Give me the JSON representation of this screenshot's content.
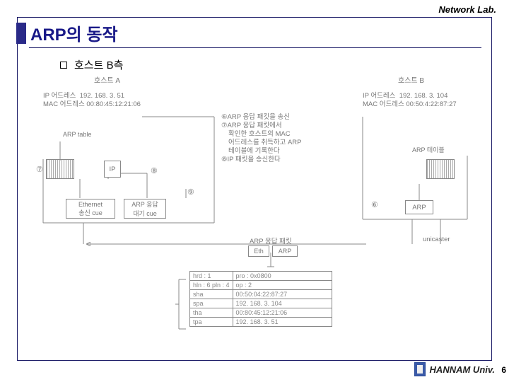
{
  "header": {
    "lab": "Network Lab."
  },
  "title": "ARP의 동작",
  "bullet": "호스트 B측",
  "footer": {
    "univ": "HANNAM Univ.",
    "page": "6"
  },
  "hostA": {
    "label": "호스트 A",
    "ip_lbl": "IP 어드레스",
    "ip": "192. 168. 3. 51",
    "mac_lbl": "MAC 어드레스",
    "mac": "00:80:45:12:21:06",
    "ip_box": "IP",
    "eth_box": "Ethernet\n송신 cue",
    "arp_box": "ARP 응답\n대기 cue",
    "arp_table_lbl": "ARP table"
  },
  "hostB": {
    "label": "호스트 B",
    "ip_lbl": "IP 어드레스",
    "ip": "192. 168. 3. 104",
    "mac_lbl": "MAC 어드레스",
    "mac": "00:50:4:22:87:27",
    "arp_box": "ARP",
    "arp_table_lbl": "ARP 테이블"
  },
  "steps": {
    "s6": "⑥ARP 응답 패킷을 송신",
    "s7a": "⑦ARP 응답 패킷에서",
    "s7b": "확인한 호스트의 MAC",
    "s7c": "어드레스를 취득하고 ARP",
    "s7d": "테이블에 기록한다",
    "s8": "⑧IP 패킷을 송신한다"
  },
  "markers": {
    "m7": "⑦",
    "m8": "⑧",
    "m9": "⑨"
  },
  "reply": {
    "label": "ARP 응답 패킷",
    "eth": "Eth",
    "arp": "ARP"
  },
  "unicast": "unicaster",
  "packet": {
    "rows": [
      [
        "hrd : 1",
        "pro : 0x0800"
      ],
      [
        "hln : 6  pln : 4",
        "op :   2"
      ],
      [
        "sha",
        "00:50:04:22:87:27"
      ],
      [
        "spa",
        "192. 168. 3. 104"
      ],
      [
        "tha",
        "00:80:45:12:21:06"
      ],
      [
        "tpa",
        "192. 168. 3. 51"
      ]
    ]
  },
  "colors": {
    "frame": "#1a1a66",
    "diagram_stroke": "#888888",
    "text_gray": "#777777"
  }
}
